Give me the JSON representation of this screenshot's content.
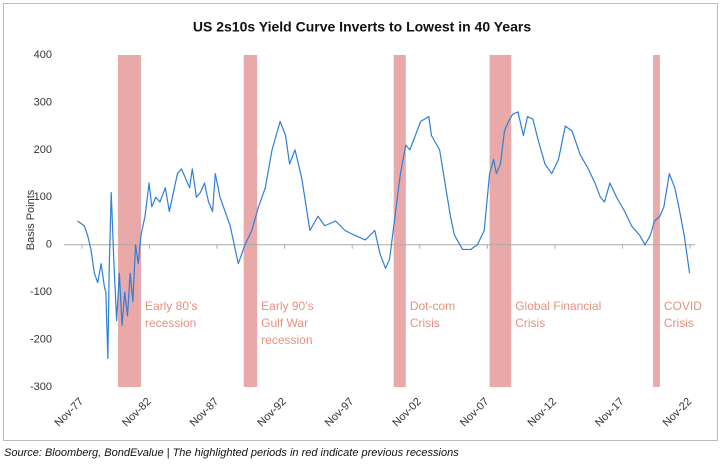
{
  "chart_data": {
    "type": "line",
    "title": "US 2s10s Yield Curve Inverts to Lowest in 40 Years",
    "ylabel": "Basis Points",
    "source": "Source: Bloomberg, BondEvalue | The highlighted periods in red indicate previous recessions",
    "color": "#2f7ed8",
    "band_color": "#eaa9a9",
    "band_label_color": "#e8907f",
    "xlim": [
      1976.8,
      2023.2
    ],
    "ylim": [
      -300,
      400
    ],
    "yticks": [
      -300,
      -200,
      -100,
      0,
      100,
      200,
      300,
      400
    ],
    "xticks": [
      {
        "value": 1977.83,
        "label": "Nov-77"
      },
      {
        "value": 1982.83,
        "label": "Nov-82"
      },
      {
        "value": 1987.83,
        "label": "Nov-87"
      },
      {
        "value": 1992.83,
        "label": "Nov-92"
      },
      {
        "value": 1997.83,
        "label": "Nov-97"
      },
      {
        "value": 2002.83,
        "label": "Nov-02"
      },
      {
        "value": 2007.83,
        "label": "Nov-07"
      },
      {
        "value": 2012.83,
        "label": "Nov-12"
      },
      {
        "value": 2017.83,
        "label": "Nov-17"
      },
      {
        "value": 2022.83,
        "label": "Nov-22"
      }
    ],
    "x": [
      1977.5,
      1977.75,
      1978.0,
      1978.25,
      1978.5,
      1978.75,
      1979.0,
      1979.25,
      1979.5,
      1979.6,
      1979.75,
      1979.85,
      1980.0,
      1980.2,
      1980.4,
      1980.6,
      1980.8,
      1981.0,
      1981.2,
      1981.4,
      1981.6,
      1981.8,
      1982.0,
      1982.2,
      1982.5,
      1982.8,
      1983.0,
      1983.3,
      1983.6,
      1984.0,
      1984.3,
      1984.6,
      1984.9,
      1985.2,
      1985.5,
      1985.8,
      1986.0,
      1986.3,
      1986.6,
      1986.9,
      1987.2,
      1987.5,
      1987.7,
      1988.05,
      1988.8,
      1989.4,
      1989.9,
      1990.4,
      1990.9,
      1991.4,
      1991.9,
      1992.5,
      1992.9,
      1993.2,
      1993.6,
      1994.1,
      1994.7,
      1995.3,
      1995.8,
      1996.6,
      1997.3,
      1998.0,
      1998.8,
      1999.5,
      1999.9,
      2000.3,
      2000.6,
      2001.0,
      2001.4,
      2001.8,
      2002.1,
      2002.5,
      2002.9,
      2003.5,
      2003.7,
      2004.3,
      2004.7,
      2005.1,
      2005.4,
      2006.0,
      2006.6,
      2007.1,
      2007.6,
      2008.0,
      2008.3,
      2008.5,
      2008.8,
      2009.1,
      2009.4,
      2009.7,
      2010.1,
      2010.5,
      2010.8,
      2011.2,
      2011.6,
      2012.1,
      2012.6,
      2013.1,
      2013.6,
      2014.1,
      2014.7,
      2015.3,
      2015.8,
      2016.2,
      2016.5,
      2016.9,
      2017.4,
      2018.0,
      2018.5,
      2019.1,
      2019.5,
      2019.9,
      2020.2,
      2020.6,
      2020.9,
      2021.3,
      2021.7,
      2022.0,
      2022.4,
      2022.8
    ],
    "values": [
      50,
      45,
      40,
      20,
      -10,
      -60,
      -80,
      -40,
      -90,
      -100,
      -240,
      -50,
      110,
      -40,
      -160,
      -60,
      -170,
      -100,
      -150,
      -60,
      -120,
      0,
      -40,
      20,
      60,
      130,
      80,
      100,
      90,
      120,
      70,
      110,
      150,
      160,
      140,
      120,
      160,
      100,
      110,
      130,
      90,
      70,
      150,
      100,
      40,
      -40,
      0,
      30,
      80,
      120,
      200,
      260,
      230,
      170,
      200,
      140,
      30,
      60,
      40,
      50,
      30,
      20,
      10,
      30,
      -20,
      -50,
      -30,
      60,
      150,
      210,
      200,
      230,
      260,
      270,
      230,
      200,
      130,
      60,
      20,
      -10,
      -10,
      0,
      30,
      150,
      180,
      150,
      170,
      240,
      260,
      275,
      280,
      230,
      270,
      265,
      220,
      170,
      150,
      180,
      250,
      240,
      190,
      160,
      130,
      100,
      90,
      130,
      100,
      70,
      40,
      20,
      0,
      20,
      50,
      60,
      80,
      150,
      120,
      80,
      20,
      -60
    ],
    "recessions": [
      {
        "start": 1980.5,
        "end": 1982.2,
        "label": [
          "Early 80’s",
          "recession"
        ]
      },
      {
        "start": 1989.8,
        "end": 1990.8,
        "label": [
          "Early 90’s",
          "Gulf War",
          "recession"
        ]
      },
      {
        "start": 2000.9,
        "end": 2001.8,
        "label": [
          "Dot-com",
          "Crisis"
        ]
      },
      {
        "start": 2008.0,
        "end": 2009.6,
        "label": [
          "Global Financial",
          "Crisis"
        ]
      },
      {
        "start": 2020.1,
        "end": 2020.6,
        "label": [
          "COVID",
          "Crisis"
        ]
      }
    ]
  }
}
